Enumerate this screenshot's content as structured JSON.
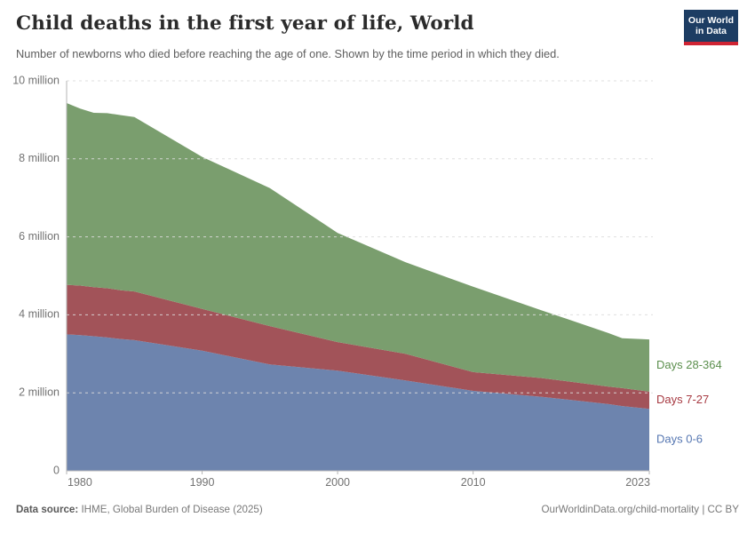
{
  "header": {
    "title": "Child deaths in the first year of life, World",
    "subtitle": "Number of newborns who died before reaching the age of one. Shown by the time period in which they died.",
    "logo_text": "Our World\nin Data",
    "logo_bg": "#1d3d63",
    "logo_stripe": "#cf2433"
  },
  "footer": {
    "data_source_label": "Data source:",
    "data_source_value": " IHME, Global Burden of Disease (2025)",
    "link": "OurWorldinData.org/child-mortality | CC BY"
  },
  "chart_data": {
    "type": "area",
    "stacked": true,
    "title": "Child deaths in the first year of life, World",
    "unit": "million deaths",
    "x": [
      1980,
      1981,
      1982,
      1983,
      1984,
      1985,
      1990,
      1995,
      2000,
      2005,
      2010,
      2015,
      2020,
      2021,
      2023
    ],
    "series": [
      {
        "name": "Days 0-6",
        "values": [
          3.5,
          3.48,
          3.45,
          3.42,
          3.38,
          3.35,
          3.08,
          2.73,
          2.57,
          2.32,
          2.05,
          1.9,
          1.71,
          1.66,
          1.59
        ],
        "fill": "#6d84ae",
        "label_color": "#5677b2"
      },
      {
        "name": "Days 7-27",
        "values": [
          1.27,
          1.27,
          1.26,
          1.26,
          1.25,
          1.25,
          1.07,
          0.98,
          0.73,
          0.68,
          0.48,
          0.48,
          0.45,
          0.46,
          0.44
        ],
        "fill": "#a25359",
        "label_color": "#a73a42"
      },
      {
        "name": "Days 28-364",
        "values": [
          4.66,
          4.54,
          4.47,
          4.49,
          4.49,
          4.47,
          3.9,
          3.54,
          2.8,
          2.35,
          2.19,
          1.74,
          1.37,
          1.28,
          1.34
        ],
        "fill": "#7a9e6e",
        "label_color": "#5b8f4d"
      }
    ],
    "totals_note": "stacked totals range from 9.43 million (1980) to 3.37 million (2023)",
    "xlabel": "",
    "ylabel": "",
    "x_range": [
      1980,
      2023
    ],
    "ylim": [
      0,
      10
    ],
    "x_ticks": [
      1980,
      1990,
      2000,
      2010,
      2023
    ],
    "y_ticks": [
      {
        "v": 0,
        "label": "0"
      },
      {
        "v": 2,
        "label": "2 million"
      },
      {
        "v": 4,
        "label": "4 million"
      },
      {
        "v": 6,
        "label": "6 million"
      },
      {
        "v": 8,
        "label": "8 million"
      },
      {
        "v": 10,
        "label": "10 million"
      }
    ],
    "grid": "dashed-horizontal",
    "legend_position": "right-of-plot",
    "tick_color": "#727272",
    "grid_color": "#dcdcdc",
    "axis_line_color": "#b5b5b5"
  }
}
